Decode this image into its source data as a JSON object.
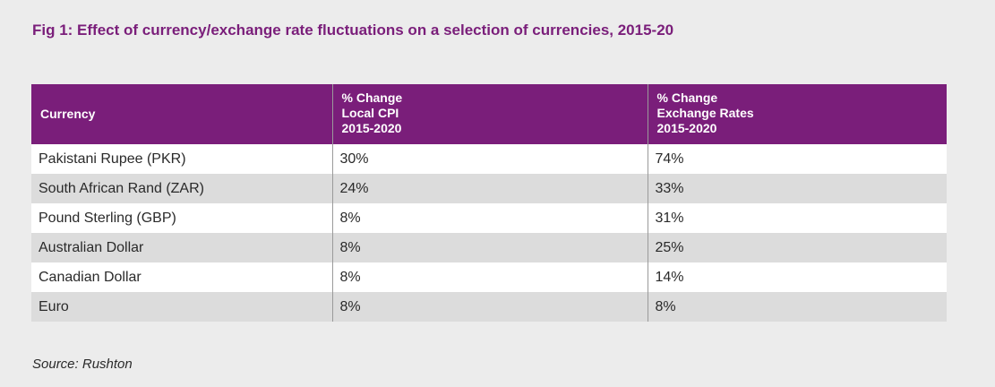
{
  "title": "Fig 1: Effect of currency/exchange rate fluctuations on a selection of currencies, 2015-20",
  "source": "Source: Rushton",
  "colors": {
    "header_bg": "#7a1e7a",
    "title": "#7a1e7a",
    "row_alt": "#dcdcdc",
    "row": "#ffffff"
  },
  "chart_data": {
    "type": "table",
    "columns": [
      [
        "Currency"
      ],
      [
        "% Change",
        "Local CPI",
        "2015-2020"
      ],
      [
        "% Change",
        "Exchange Rates",
        "2015-2020"
      ]
    ],
    "rows": [
      [
        "Pakistani Rupee (PKR)",
        "30%",
        "74%"
      ],
      [
        "South African Rand (ZAR)",
        "24%",
        "33%"
      ],
      [
        "Pound Sterling (GBP)",
        "8%",
        "31%"
      ],
      [
        "Australian Dollar",
        "8%",
        "25%"
      ],
      [
        "Canadian Dollar",
        "8%",
        "14%"
      ],
      [
        "Euro",
        "8%",
        "8%"
      ]
    ]
  }
}
